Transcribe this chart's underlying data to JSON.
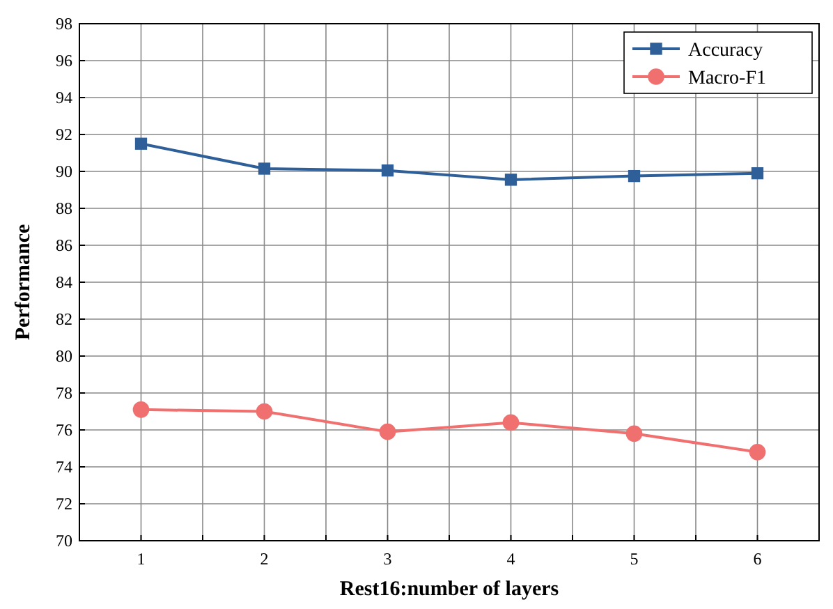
{
  "chart_data": {
    "type": "line",
    "xlabel": "Rest16:number of layers",
    "ylabel": "Performance",
    "x": [
      1,
      2,
      3,
      4,
      5,
      6
    ],
    "series": [
      {
        "name": "Accuracy",
        "color": "#2e5f98",
        "values": [
          91.5,
          90.15,
          90.05,
          89.55,
          89.75,
          89.9
        ],
        "marker": "square"
      },
      {
        "name": "Macro-F1",
        "color": "#f07070",
        "values": [
          77.1,
          77.0,
          75.9,
          76.4,
          75.8,
          74.8
        ],
        "marker": "circle"
      }
    ],
    "xlim": [
      0.5,
      6.5
    ],
    "xticks": [
      1,
      {
        "value": 1.5,
        "label": null
      },
      2,
      {
        "value": 2.5,
        "label": null
      },
      3,
      {
        "value": 3.5,
        "label": null
      },
      4,
      {
        "value": 4.5,
        "label": null
      },
      5,
      {
        "value": 5.5,
        "label": null
      },
      6
    ],
    "ylim": [
      70,
      98
    ],
    "yticks": [
      70,
      72,
      74,
      76,
      78,
      80,
      82,
      84,
      86,
      88,
      90,
      92,
      94,
      96,
      98
    ],
    "grid": true,
    "legend": "top right",
    "line_style": "solid"
  }
}
